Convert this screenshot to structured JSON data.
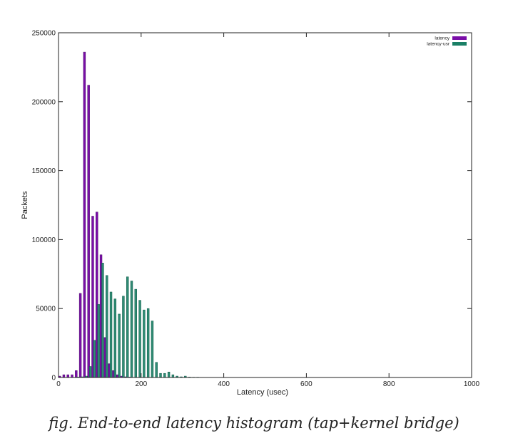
{
  "chart_data": {
    "type": "bar",
    "title": "",
    "xlabel": "Latency (usec)",
    "ylabel": "Packets",
    "xlim": [
      0,
      1000
    ],
    "ylim": [
      0,
      250000
    ],
    "x_ticks": [
      "0",
      "200",
      "400",
      "600",
      "800",
      "1000"
    ],
    "y_ticks": [
      "0",
      "50000",
      "100000",
      "150000",
      "200000",
      "250000"
    ],
    "grid": false,
    "legend_position": "top-right",
    "bin_width": 10,
    "series": [
      {
        "name": "latency",
        "color": "#7a0ea8",
        "x": [
          0,
          10,
          20,
          30,
          40,
          50,
          60,
          70,
          80,
          90,
          100,
          110,
          120,
          130,
          140,
          150,
          160,
          170
        ],
        "values": [
          1000,
          2000,
          2000,
          2000,
          5000,
          61000,
          236000,
          212000,
          117000,
          120000,
          89000,
          29000,
          10000,
          5000,
          2000,
          1000,
          500,
          300
        ]
      },
      {
        "name": "latency-usr",
        "color": "#1a8066",
        "x": [
          40,
          50,
          60,
          70,
          80,
          90,
          100,
          110,
          120,
          130,
          140,
          150,
          160,
          170,
          180,
          190,
          200,
          210,
          220,
          230,
          240,
          250,
          260,
          270,
          280,
          290,
          300,
          310,
          320,
          330,
          340,
          350,
          360,
          370,
          380,
          390,
          400
        ],
        "values": [
          300,
          500,
          1000,
          8000,
          27000,
          53000,
          83000,
          74000,
          62000,
          57000,
          46000,
          59000,
          73000,
          70000,
          64000,
          56000,
          49000,
          50000,
          41000,
          11000,
          3000,
          3000,
          4000,
          2000,
          1000,
          500,
          1000,
          300,
          200,
          200,
          100,
          100,
          100,
          100,
          50,
          50,
          50
        ]
      }
    ]
  },
  "caption": "fig. End-to-end latency histogram (tap+kernel bridge)"
}
